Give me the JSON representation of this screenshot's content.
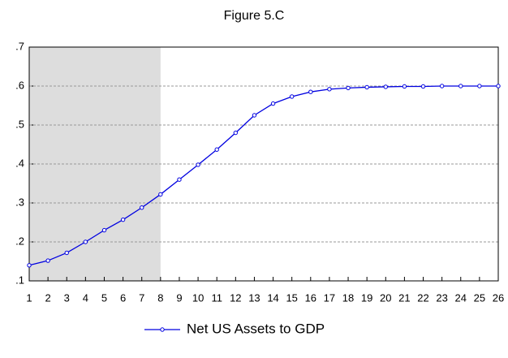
{
  "chart_data": {
    "type": "line",
    "title": "Figure 5.C",
    "x": [
      1,
      2,
      3,
      4,
      5,
      6,
      7,
      8,
      9,
      10,
      11,
      12,
      13,
      14,
      15,
      16,
      17,
      18,
      19,
      20,
      21,
      22,
      23,
      24,
      25,
      26
    ],
    "series": [
      {
        "name": "Net US Assets to GDP",
        "color": "#0000e0",
        "values": [
          0.14,
          0.152,
          0.172,
          0.2,
          0.23,
          0.257,
          0.288,
          0.322,
          0.36,
          0.398,
          0.437,
          0.48,
          0.525,
          0.555,
          0.573,
          0.585,
          0.592,
          0.595,
          0.597,
          0.598,
          0.599,
          0.599,
          0.6,
          0.6,
          0.6,
          0.6
        ]
      }
    ],
    "xlim": [
      1,
      26
    ],
    "xticks": [
      1,
      2,
      3,
      4,
      5,
      6,
      7,
      8,
      9,
      10,
      11,
      12,
      13,
      14,
      15,
      16,
      17,
      18,
      19,
      20,
      21,
      22,
      23,
      24,
      25,
      26
    ],
    "ylim": [
      0.1,
      0.7
    ],
    "yticks": [
      {
        "value": 0.1,
        "label": ".1"
      },
      {
        "value": 0.2,
        "label": ".2"
      },
      {
        "value": 0.3,
        "label": ".3"
      },
      {
        "value": 0.4,
        "label": ".4"
      },
      {
        "value": 0.5,
        "label": ".5"
      },
      {
        "value": 0.6,
        "label": ".6"
      },
      {
        "value": 0.7,
        "label": ".7"
      }
    ],
    "grid": true,
    "shade": {
      "from": 1,
      "to": 8,
      "color": "#dddddd"
    },
    "legend": "bottom"
  }
}
